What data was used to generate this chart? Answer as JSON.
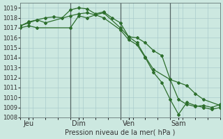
{
  "title": "Pression niveau de la mer( hPa )",
  "bg_color": "#cce8e0",
  "grid_color": "#aacccc",
  "line_color": "#2d6e2d",
  "ylim": [
    1008,
    1019.5
  ],
  "yticks": [
    1008,
    1009,
    1010,
    1011,
    1012,
    1013,
    1014,
    1015,
    1016,
    1017,
    1018,
    1019
  ],
  "xlim": [
    0,
    96
  ],
  "xtick_positions": [
    4,
    28,
    52,
    76
  ],
  "xtick_labels": [
    "Jeu",
    "Dim",
    "Ven",
    "Sam"
  ],
  "vlines": [
    24,
    48,
    72
  ],
  "lines": [
    {
      "x": [
        0,
        4,
        8,
        12,
        24,
        28,
        32,
        36,
        40,
        48,
        52,
        56,
        60,
        64,
        68,
        72,
        76,
        80,
        84,
        88,
        92,
        96
      ],
      "y": [
        1017.2,
        1017.6,
        1017.8,
        1017.5,
        1018.2,
        1018.4,
        1018.5,
        1018.3,
        1018.5,
        1017.0,
        1016.1,
        1016.0,
        1015.5,
        1014.7,
        1014.2,
        1011.8,
        1009.8,
        1009.3,
        1009.1,
        1009.2,
        1009.0,
        1009.3
      ]
    },
    {
      "x": [
        0,
        4,
        8,
        24,
        28,
        32,
        36,
        40,
        48,
        52,
        56,
        60,
        64,
        68,
        72,
        76,
        80,
        84,
        88,
        92,
        96
      ],
      "y": [
        1017.0,
        1017.2,
        1017.0,
        1017.0,
        1018.2,
        1018.0,
        1018.3,
        1018.0,
        1016.8,
        1015.8,
        1015.3,
        1014.0,
        1012.5,
        1011.5,
        1009.8,
        1008.3,
        1009.5,
        1009.2,
        1009.0,
        1008.8,
        1009.0
      ]
    },
    {
      "x": [
        0,
        4,
        8,
        12,
        16,
        20,
        24,
        28,
        32,
        36,
        40,
        44,
        48,
        52,
        56,
        60,
        64,
        72,
        76,
        80,
        84,
        88,
        96
      ],
      "y": [
        1017.2,
        1017.5,
        1017.8,
        1018.0,
        1018.1,
        1018.0,
        1018.8,
        1019.0,
        1018.9,
        1018.4,
        1018.6,
        1018.0,
        1017.5,
        1016.1,
        1015.5,
        1014.1,
        1012.8,
        1011.8,
        1011.5,
        1011.2,
        1010.4,
        1009.8,
        1009.2
      ]
    }
  ]
}
